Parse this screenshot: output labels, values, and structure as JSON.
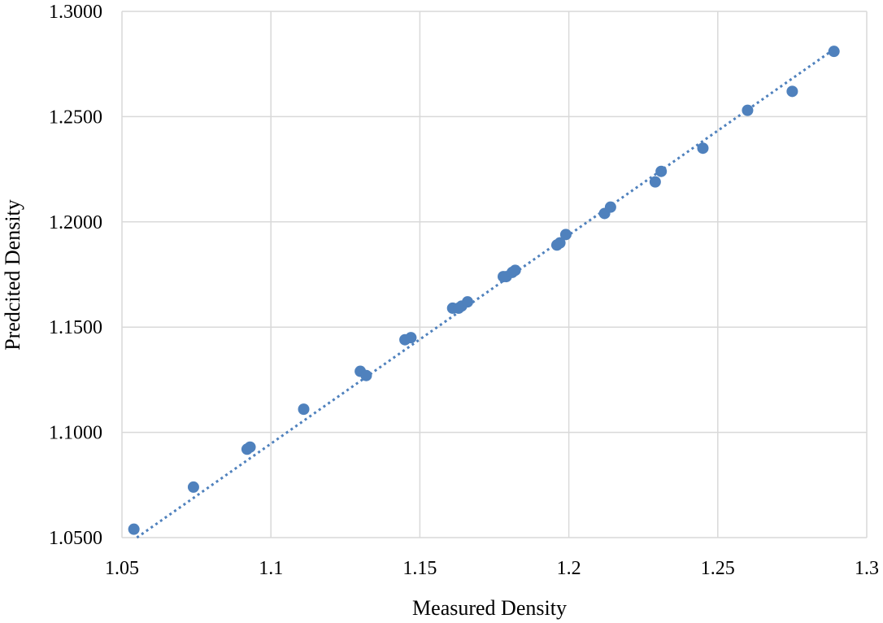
{
  "chart_data": {
    "type": "scatter",
    "title": "",
    "xlabel": "Measured Density",
    "ylabel": "Predcited Density",
    "xlim": [
      1.05,
      1.3
    ],
    "ylim": [
      1.05,
      1.3
    ],
    "x_ticks": [
      "1.05",
      "1.1",
      "1.15",
      "1.2",
      "1.25",
      "1.3"
    ],
    "y_ticks": [
      "1.0500",
      "1.1000",
      "1.1500",
      "1.2000",
      "1.2500",
      "1.3000"
    ],
    "grid": true,
    "legend": "none",
    "marker_color": "#4f81bd",
    "trendline": {
      "type": "linear",
      "style": "dotted",
      "color": "#4f81bd",
      "from": [
        1.055,
        1.05
      ],
      "to": [
        1.289,
        1.282
      ]
    },
    "series": [
      {
        "points": [
          [
            1.054,
            1.054
          ],
          [
            1.074,
            1.074
          ],
          [
            1.092,
            1.092
          ],
          [
            1.093,
            1.093
          ],
          [
            1.111,
            1.111
          ],
          [
            1.13,
            1.129
          ],
          [
            1.132,
            1.127
          ],
          [
            1.145,
            1.144
          ],
          [
            1.147,
            1.145
          ],
          [
            1.161,
            1.159
          ],
          [
            1.163,
            1.159
          ],
          [
            1.164,
            1.16
          ],
          [
            1.166,
            1.162
          ],
          [
            1.178,
            1.174
          ],
          [
            1.179,
            1.174
          ],
          [
            1.181,
            1.176
          ],
          [
            1.182,
            1.177
          ],
          [
            1.196,
            1.189
          ],
          [
            1.197,
            1.19
          ],
          [
            1.199,
            1.194
          ],
          [
            1.212,
            1.204
          ],
          [
            1.214,
            1.207
          ],
          [
            1.229,
            1.219
          ],
          [
            1.231,
            1.224
          ],
          [
            1.245,
            1.235
          ],
          [
            1.26,
            1.253
          ],
          [
            1.275,
            1.262
          ],
          [
            1.289,
            1.281
          ]
        ]
      }
    ]
  }
}
